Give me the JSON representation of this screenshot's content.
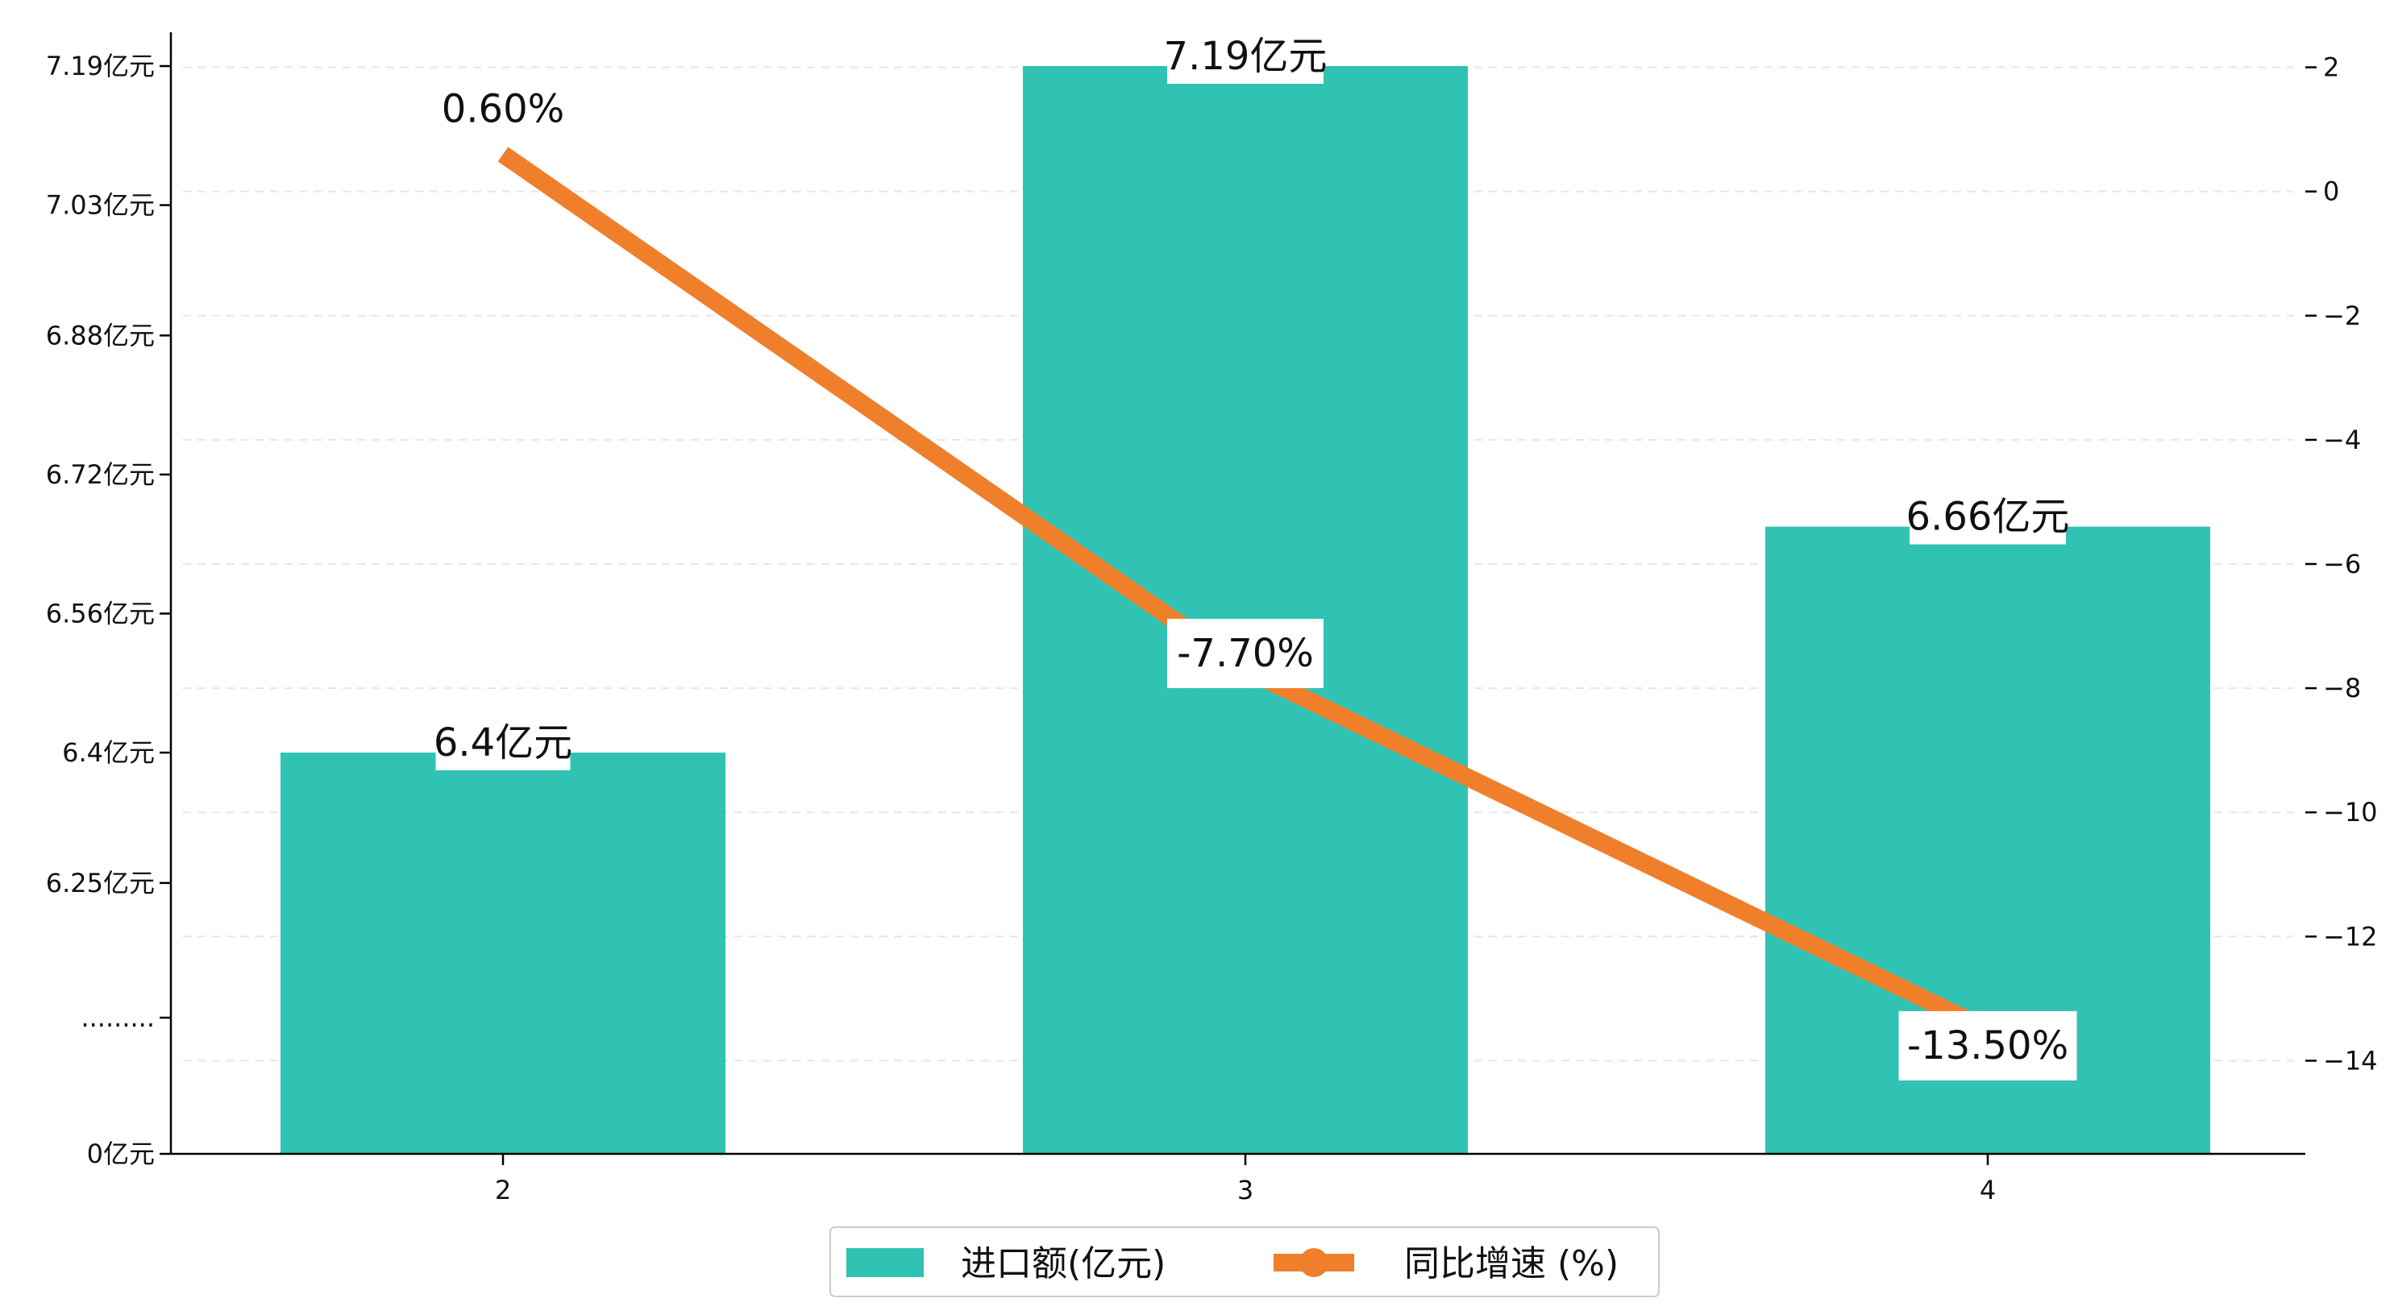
{
  "chart_data": {
    "type": "bar",
    "categories": [
      "2",
      "3",
      "4"
    ],
    "series": [
      {
        "name": "进口额(亿元)",
        "type": "bar",
        "axis": "left",
        "values": [
          6.4,
          7.19,
          6.66
        ],
        "labels": [
          "6.4亿元",
          "7.19亿元",
          "6.66亿元"
        ],
        "color": "#1ABBAA"
      },
      {
        "name": "同比增速 (%)",
        "type": "line",
        "axis": "right",
        "values": [
          0.6,
          -7.7,
          -13.5
        ],
        "labels": [
          "0.60%",
          "-7.70%",
          "-13.50%"
        ],
        "color": "#F07F2B"
      }
    ],
    "left_axis": {
      "ticks": [
        {
          "value": 0,
          "label": "0亿元"
        },
        {
          "value": 6.095,
          "label": "........."
        },
        {
          "value": 6.25,
          "label": "6.25亿元"
        },
        {
          "value": 6.4,
          "label": "6.4亿元"
        },
        {
          "value": 6.56,
          "label": "6.56亿元"
        },
        {
          "value": 6.72,
          "label": "6.72亿元"
        },
        {
          "value": 6.88,
          "label": "6.88亿元"
        },
        {
          "value": 7.03,
          "label": "7.03亿元"
        },
        {
          "value": 7.19,
          "label": "7.19亿元"
        }
      ],
      "broken_axis": true
    },
    "right_axis": {
      "ticks": [
        2,
        0,
        -2,
        -4,
        -6,
        -8,
        -10,
        -12,
        -14
      ],
      "ylim": [
        -15.5,
        2.5
      ]
    },
    "grid": "horizontal-dashed",
    "legend_position": "bottom-center",
    "title": "",
    "xlabel": "",
    "ylabel": ""
  }
}
